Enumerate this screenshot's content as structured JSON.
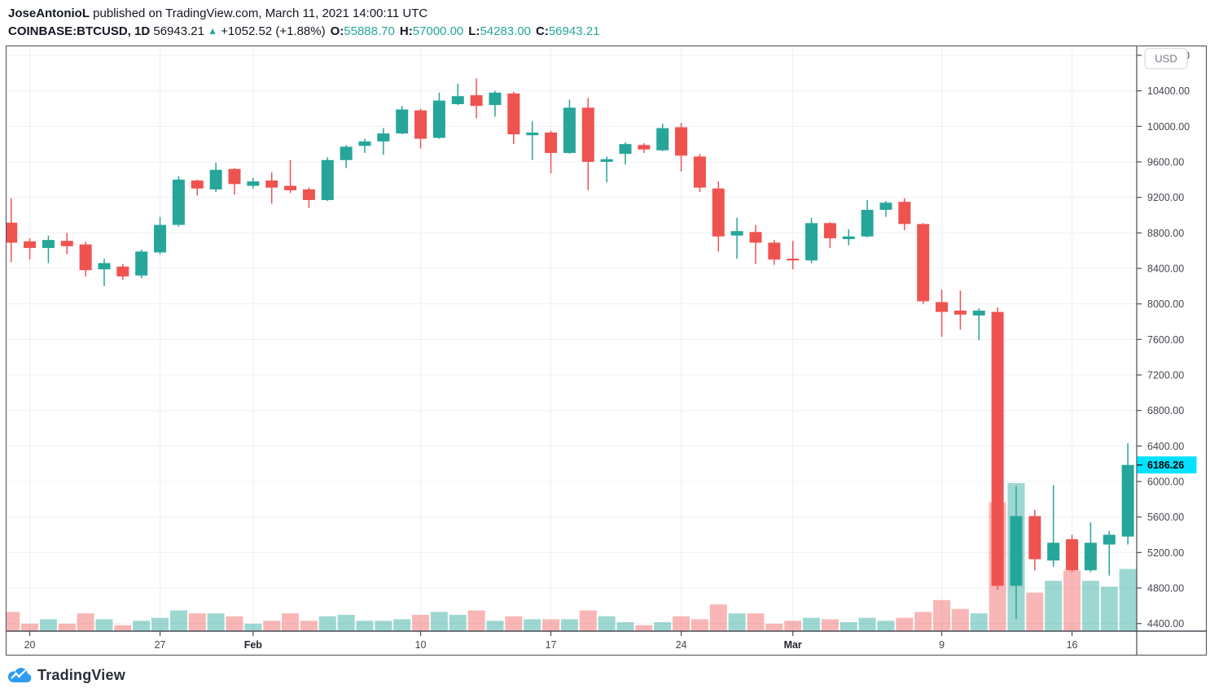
{
  "header": {
    "author": "JoseAntonioL",
    "published_text": " published on TradingView.com, March 11, 2021 14:00:11 UTC",
    "symbol": "COINBASE:BTCUSD, 1D",
    "last": "56943.21",
    "arrow": "▲",
    "change": "+1052.52 (+1.88%)",
    "ohlc": [
      {
        "k": "O:",
        "v": "55888.70"
      },
      {
        "k": "H:",
        "v": "57000.00"
      },
      {
        "k": "L:",
        "v": "54283.00"
      },
      {
        "k": "C:",
        "v": "56943.21"
      }
    ]
  },
  "footer": {
    "logo_text": "TradingView"
  },
  "colors": {
    "up": "#26a69a",
    "down": "#ef5350",
    "vol_up": "rgba(38,166,154,0.45)",
    "vol_down": "rgba(239,83,80,0.42)",
    "badge_bg": "#00e2ff",
    "badge_text": "#000000",
    "grid": "#eef0f6",
    "frame": "#494c55",
    "axis_text": "#44474f",
    "month_label": "#24262d",
    "accent_text": "#26a69a",
    "logo_blue": "#2d9cf4",
    "usd_text": "#787b86",
    "usd_border": "#d9dce3"
  },
  "chart_data": {
    "type": "candlestick+volume",
    "symbol": "COINBASE:BTCUSD",
    "interval": "1D",
    "currency_button": "USD",
    "last_price": 6186.26,
    "last_price_label": "6186.26",
    "y_axis": {
      "min": 4400,
      "max": 10800,
      "tick_step": 400,
      "labels": [
        "10800.00",
        "10400.00",
        "10000.00",
        "9600.00",
        "9200.00",
        "8800.00",
        "8400.00",
        "8000.00",
        "7600.00",
        "7200.00",
        "6800.00",
        "6400.00",
        "6000.00",
        "5600.00",
        "5200.00",
        "4800.00",
        "4400.00"
      ]
    },
    "x_axis": {
      "labels": [
        {
          "t": "20",
          "i": 1
        },
        {
          "t": "27",
          "i": 8
        },
        {
          "t": "Feb",
          "i": 13,
          "b": 1
        },
        {
          "t": "10",
          "i": 22
        },
        {
          "t": "17",
          "i": 29
        },
        {
          "t": "24",
          "i": 36
        },
        {
          "t": "Mar",
          "i": 42,
          "b": 1
        },
        {
          "t": "9",
          "i": 50
        },
        {
          "t": "16",
          "i": 57
        }
      ]
    },
    "candles_note": "each candle: [date, open, high, low, close, relative_volume_0_to_1]",
    "candles": [
      [
        "Jan 19",
        8915,
        9190,
        8470,
        8690,
        0.13
      ],
      [
        "Jan 20",
        8705,
        8740,
        8500,
        8630,
        0.05
      ],
      [
        "Jan 21",
        8630,
        8770,
        8460,
        8720,
        0.08
      ],
      [
        "Jan 22",
        8710,
        8800,
        8560,
        8650,
        0.05
      ],
      [
        "Jan 23",
        8670,
        8700,
        8310,
        8380,
        0.12
      ],
      [
        "Jan 24",
        8390,
        8510,
        8200,
        8460,
        0.08
      ],
      [
        "Jan 25",
        8420,
        8450,
        8270,
        8310,
        0.04
      ],
      [
        "Jan 26",
        8320,
        8610,
        8290,
        8590,
        0.07
      ],
      [
        "Jan 27",
        8580,
        8980,
        8560,
        8890,
        0.09
      ],
      [
        "Jan 28",
        8890,
        9440,
        8870,
        9400,
        0.14
      ],
      [
        "Jan 29",
        9390,
        9400,
        9220,
        9300,
        0.12
      ],
      [
        "Jan 30",
        9290,
        9590,
        9260,
        9510,
        0.12
      ],
      [
        "Jan 31",
        9520,
        9530,
        9230,
        9350,
        0.1
      ],
      [
        "Feb 1",
        9330,
        9420,
        9300,
        9380,
        0.05
      ],
      [
        "Feb 2",
        9390,
        9480,
        9130,
        9310,
        0.07
      ],
      [
        "Feb 3",
        9330,
        9620,
        9250,
        9280,
        0.12
      ],
      [
        "Feb 4",
        9290,
        9310,
        9080,
        9170,
        0.07
      ],
      [
        "Feb 5",
        9170,
        9650,
        9160,
        9620,
        0.1
      ],
      [
        "Feb 6",
        9620,
        9790,
        9530,
        9770,
        0.11
      ],
      [
        "Feb 7",
        9780,
        9860,
        9700,
        9830,
        0.07
      ],
      [
        "Feb 8",
        9830,
        9980,
        9680,
        9920,
        0.07
      ],
      [
        "Feb 9",
        9920,
        10230,
        9910,
        10190,
        0.08
      ],
      [
        "Feb 10",
        10180,
        10200,
        9750,
        9860,
        0.11
      ],
      [
        "Feb 11",
        9870,
        10380,
        9860,
        10290,
        0.13
      ],
      [
        "Feb 12",
        10250,
        10480,
        10240,
        10340,
        0.11
      ],
      [
        "Feb 13",
        10350,
        10540,
        10090,
        10230,
        0.14
      ],
      [
        "Feb 14",
        10240,
        10400,
        10110,
        10380,
        0.07
      ],
      [
        "Feb 15",
        10370,
        10390,
        9800,
        9910,
        0.1
      ],
      [
        "Feb 16",
        9900,
        10060,
        9620,
        9930,
        0.08
      ],
      [
        "Feb 17",
        9930,
        9950,
        9470,
        9700,
        0.08
      ],
      [
        "Feb 18",
        9700,
        10300,
        9690,
        10210,
        0.08
      ],
      [
        "Feb 19",
        10210,
        10320,
        9280,
        9600,
        0.14
      ],
      [
        "Feb 20",
        9600,
        9660,
        9370,
        9630,
        0.1
      ],
      [
        "Feb 21",
        9690,
        9820,
        9570,
        9800,
        0.06
      ],
      [
        "Feb 22",
        9790,
        9810,
        9700,
        9740,
        0.04
      ],
      [
        "Feb 23",
        9730,
        10030,
        9720,
        9980,
        0.06
      ],
      [
        "Feb 24",
        9990,
        10040,
        9490,
        9670,
        0.1
      ],
      [
        "Feb 25",
        9660,
        9690,
        9260,
        9310,
        0.08
      ],
      [
        "Feb 26",
        9300,
        9380,
        8590,
        8760,
        0.18
      ],
      [
        "Feb 27",
        8770,
        8970,
        8510,
        8820,
        0.12
      ],
      [
        "Feb 28",
        8810,
        8890,
        8450,
        8690,
        0.12
      ],
      [
        "Feb 29",
        8690,
        8720,
        8440,
        8500,
        0.05
      ],
      [
        "Mar 1",
        8510,
        8710,
        8390,
        8490,
        0.07
      ],
      [
        "Mar 2",
        8490,
        8970,
        8460,
        8910,
        0.09
      ],
      [
        "Mar 3",
        8910,
        8920,
        8630,
        8740,
        0.08
      ],
      [
        "Mar 4",
        8730,
        8840,
        8660,
        8760,
        0.06
      ],
      [
        "Mar 5",
        8760,
        9170,
        8750,
        9060,
        0.09
      ],
      [
        "Mar 6",
        9060,
        9160,
        8980,
        9140,
        0.07
      ],
      [
        "Mar 7",
        9150,
        9190,
        8830,
        8900,
        0.09
      ],
      [
        "Mar 8",
        8900,
        8910,
        8000,
        8030,
        0.13
      ],
      [
        "Mar 9",
        8020,
        8160,
        7630,
        7910,
        0.21
      ],
      [
        "Mar 10",
        7925,
        8150,
        7710,
        7880,
        0.15
      ],
      [
        "Mar 11",
        7870,
        7950,
        7590,
        7925,
        0.12
      ],
      [
        "Mar 12",
        7910,
        7960,
        4780,
        4825,
        0.87
      ],
      [
        "Mar 13",
        4825,
        5950,
        4450,
        5610,
        1.0
      ],
      [
        "Mar 14",
        5610,
        5680,
        5000,
        5125,
        0.26
      ],
      [
        "Mar 15",
        5110,
        5960,
        5040,
        5310,
        0.34
      ],
      [
        "Mar 16",
        5350,
        5400,
        4980,
        5000,
        0.41
      ],
      [
        "Mar 17",
        5000,
        5540,
        4980,
        5310,
        0.34
      ],
      [
        "Mar 18",
        5290,
        5440,
        4940,
        5400,
        0.3
      ],
      [
        "Mar 19",
        5380,
        6430,
        5290,
        6186.26,
        0.42
      ]
    ]
  }
}
